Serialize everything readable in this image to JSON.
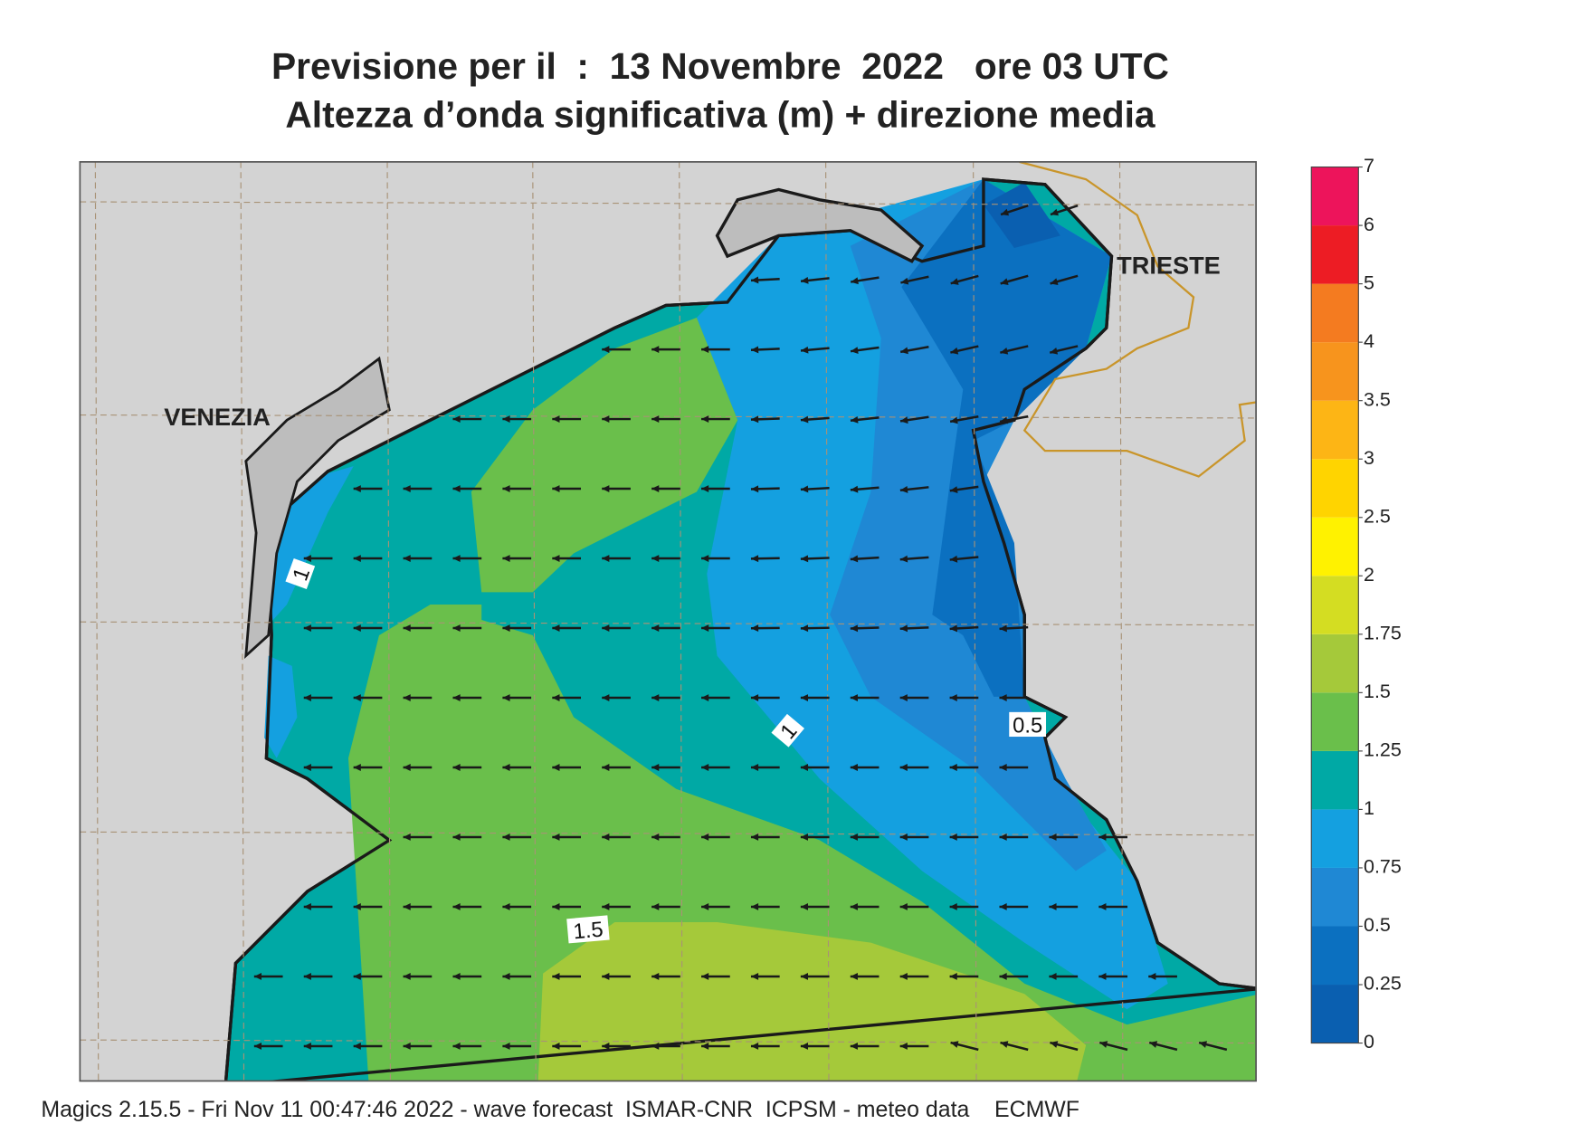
{
  "title": "Previsione per il  :  13 Novembre  2022   ore 03 UTC",
  "subtitle": "Altezza d’onda significativa (m) + direzione media",
  "places": [
    "VENEZIA",
    "TRIESTE"
  ],
  "contour_labels": [
    "1",
    "1",
    "1.5",
    "0.5"
  ],
  "legend": {
    "ticks": [
      0,
      0.25,
      0.5,
      0.75,
      1,
      1.25,
      1.5,
      1.75,
      2,
      2.5,
      3,
      3.5,
      4,
      5,
      6,
      7
    ],
    "colors": [
      "#0a5fb0",
      "#0b70c0",
      "#1f88d4",
      "#14a0e0",
      "#00a9a5",
      "#6abf4b",
      "#a5c93a",
      "#d4dd22",
      "#fff200",
      "#ffd400",
      "#fdb515",
      "#f7941d",
      "#f47b20",
      "#ed1c24",
      "#ed145b"
    ]
  },
  "footer": "Magics 2.15.5 - Fri Nov 11 00:47:46 2022 - wave forecast  ISMAR-CNR  ICPSM - meteo data    ECMWF"
}
